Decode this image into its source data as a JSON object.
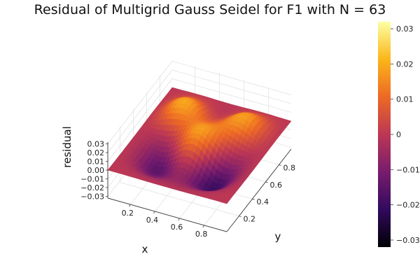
{
  "chart_data": {
    "type": "surface",
    "title": "Residual of Multigrid Gauss Seidel for F1 with N = 63",
    "xlabel": "x",
    "ylabel": "y",
    "zlabel": "residual",
    "x_ticks": [
      "0.2",
      "0.4",
      "0.6",
      "0.8"
    ],
    "y_ticks": [
      "0.2",
      "0.4",
      "0.6",
      "0.8"
    ],
    "z_ticks": [
      "−0.03",
      "−0.02",
      "−0.01",
      "0.00",
      "0.01",
      "0.02",
      "0.03"
    ],
    "z_tick_values": [
      -0.03,
      -0.02,
      -0.01,
      0.0,
      0.01,
      0.02,
      0.03
    ],
    "colorbar_ticks": [
      "0.03",
      "0.02",
      "0.01",
      "0",
      "−0.01",
      "−0.02",
      "−0.03"
    ],
    "colorbar_values": [
      0.03,
      0.02,
      0.01,
      0,
      -0.01,
      -0.02,
      -0.03
    ],
    "xlim": [
      0.016,
      0.984
    ],
    "ylim": [
      0.016,
      0.984
    ],
    "zlim": [
      -0.032,
      0.032
    ],
    "colormap": "inferno",
    "colormap_stops": [
      "#000004",
      "#320a5e",
      "#781c6d",
      "#bc3754",
      "#ed6925",
      "#fbb61a",
      "#fcffa4"
    ],
    "grid": true,
    "legend": "none",
    "colorbar": "right",
    "grid_size": 63,
    "residual_peaks": [
      {
        "x": 0.25,
        "y": 0.2,
        "z": -0.025
      },
      {
        "x": 0.75,
        "y": 0.25,
        "z": -0.03
      },
      {
        "x": 0.2,
        "y": 0.75,
        "z": 0.031
      },
      {
        "x": 0.75,
        "y": 0.8,
        "z": 0.03
      },
      {
        "x": 0.5,
        "y": 0.5,
        "z": 0.01
      }
    ]
  }
}
